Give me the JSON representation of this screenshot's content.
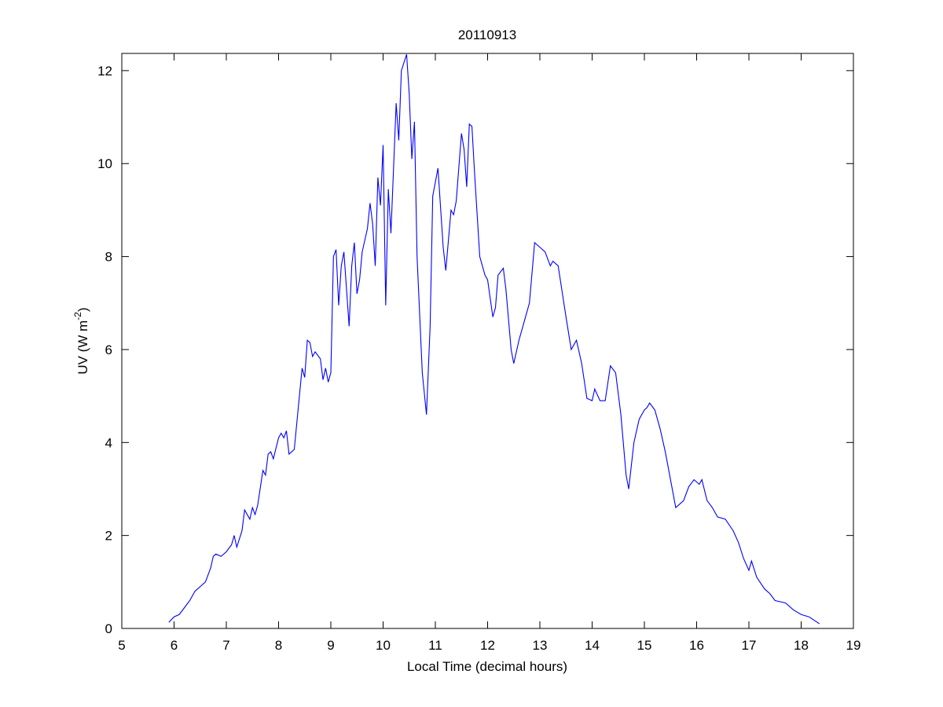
{
  "chart_data": {
    "type": "line",
    "title": "20110913",
    "xlabel": "Local Time (decimal hours)",
    "ylabel": [
      "UV (W m",
      "-2",
      ")"
    ],
    "color": "#0000ff",
    "xlim": [
      5,
      19
    ],
    "xticks": [
      5,
      6,
      7,
      8,
      9,
      10,
      11,
      12,
      13,
      14,
      15,
      16,
      17,
      18,
      19
    ],
    "ylim": [
      0,
      12.37
    ],
    "yticks": [
      0,
      2,
      4,
      6,
      8,
      10,
      12
    ],
    "grid": false,
    "x": [
      5.9,
      6.0,
      6.1,
      6.2,
      6.3,
      6.4,
      6.5,
      6.6,
      6.7,
      6.75,
      6.8,
      6.9,
      7.0,
      7.1,
      7.15,
      7.2,
      7.3,
      7.35,
      7.45,
      7.5,
      7.55,
      7.6,
      7.7,
      7.75,
      7.8,
      7.85,
      7.9,
      8.0,
      8.05,
      8.1,
      8.15,
      8.2,
      8.3,
      8.45,
      8.5,
      8.55,
      8.6,
      8.65,
      8.7,
      8.8,
      8.85,
      8.9,
      8.95,
      9.0,
      9.05,
      9.1,
      9.15,
      9.2,
      9.25,
      9.3,
      9.35,
      9.4,
      9.45,
      9.5,
      9.55,
      9.6,
      9.7,
      9.75,
      9.8,
      9.85,
      9.9,
      9.95,
      10.0,
      10.05,
      10.1,
      10.15,
      10.25,
      10.3,
      10.35,
      10.45,
      10.5,
      10.55,
      10.6,
      10.65,
      10.75,
      10.83,
      10.9,
      10.95,
      11.05,
      11.15,
      11.2,
      11.3,
      11.35,
      11.4,
      11.5,
      11.55,
      11.6,
      11.65,
      11.7,
      11.75,
      11.85,
      11.95,
      12.0,
      12.1,
      12.15,
      12.2,
      12.3,
      12.35,
      12.45,
      12.5,
      12.6,
      12.7,
      12.8,
      12.9,
      13.0,
      13.1,
      13.2,
      13.25,
      13.35,
      13.5,
      13.6,
      13.7,
      13.8,
      13.9,
      14.0,
      14.05,
      14.15,
      14.25,
      14.35,
      14.45,
      14.55,
      14.65,
      14.7,
      14.8,
      14.9,
      15.0,
      15.05,
      15.1,
      15.2,
      15.3,
      15.4,
      15.5,
      15.6,
      15.75,
      15.85,
      15.95,
      16.05,
      16.1,
      16.2,
      16.3,
      16.4,
      16.55,
      16.7,
      16.8,
      16.9,
      17.0,
      17.05,
      17.15,
      17.3,
      17.4,
      17.5,
      17.7,
      17.85,
      18.0,
      18.15,
      18.35
    ],
    "values": [
      0.13,
      0.25,
      0.3,
      0.45,
      0.6,
      0.8,
      0.9,
      1.0,
      1.3,
      1.55,
      1.6,
      1.55,
      1.65,
      1.8,
      2.0,
      1.75,
      2.1,
      2.55,
      2.35,
      2.6,
      2.45,
      2.65,
      3.4,
      3.3,
      3.75,
      3.8,
      3.65,
      4.1,
      4.2,
      4.1,
      4.25,
      3.75,
      3.85,
      5.6,
      5.4,
      6.2,
      6.15,
      5.85,
      5.95,
      5.8,
      5.35,
      5.6,
      5.3,
      5.5,
      8.0,
      8.15,
      6.95,
      7.8,
      8.1,
      7.3,
      6.5,
      7.8,
      8.3,
      7.2,
      7.5,
      8.1,
      8.6,
      9.15,
      8.7,
      7.8,
      9.7,
      9.1,
      10.4,
      6.95,
      9.45,
      8.5,
      11.3,
      10.5,
      12.0,
      12.35,
      11.5,
      10.1,
      10.9,
      8.0,
      5.5,
      4.6,
      6.5,
      9.3,
      9.9,
      8.2,
      7.7,
      9.0,
      8.9,
      9.2,
      10.65,
      10.3,
      9.5,
      10.85,
      10.8,
      9.8,
      8.0,
      7.6,
      7.5,
      6.7,
      6.9,
      7.6,
      7.75,
      7.3,
      6.0,
      5.7,
      6.2,
      6.6,
      7.0,
      8.3,
      8.2,
      8.1,
      7.8,
      7.9,
      7.8,
      6.7,
      6.0,
      6.2,
      5.7,
      4.95,
      4.9,
      5.15,
      4.9,
      4.9,
      5.65,
      5.5,
      4.6,
      3.3,
      3.0,
      4.0,
      4.5,
      4.7,
      4.75,
      4.85,
      4.7,
      4.3,
      3.8,
      3.2,
      2.6,
      2.75,
      3.05,
      3.2,
      3.1,
      3.2,
      2.75,
      2.6,
      2.4,
      2.35,
      2.1,
      1.85,
      1.5,
      1.25,
      1.45,
      1.1,
      0.85,
      0.75,
      0.6,
      0.55,
      0.4,
      0.3,
      0.25,
      0.1
    ]
  }
}
